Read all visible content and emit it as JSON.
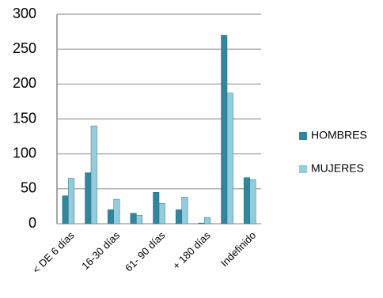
{
  "chart_data": {
    "type": "bar",
    "categories": [
      "< DE 6 días",
      null,
      "16-30 días",
      null,
      "61- 90 días",
      null,
      "+ 180 días",
      null,
      "Indefinido"
    ],
    "series": [
      {
        "name": "HOMBRES",
        "color": "#31859c",
        "values": [
          40,
          73,
          20,
          15,
          45,
          20,
          1,
          270,
          66
        ]
      },
      {
        "name": "MUJERES",
        "color": "#93cddd",
        "values": [
          65,
          140,
          35,
          12,
          29,
          38,
          9,
          187,
          63
        ]
      }
    ],
    "ylim": [
      0,
      300
    ],
    "yticks": [
      0,
      50,
      100,
      150,
      200,
      250,
      300
    ],
    "grid": true,
    "legend": "right"
  }
}
